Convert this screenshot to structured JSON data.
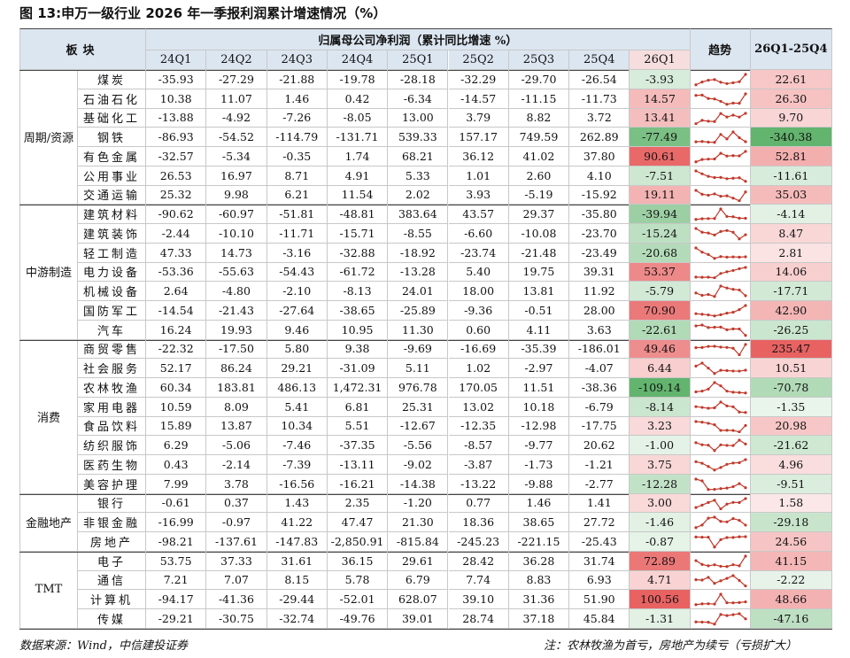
{
  "title": "图 13:申万一级行业 2026 年一季报利润累计增速情况（%）",
  "table": {
    "header": {
      "sector": "板块",
      "metric": "归属母公司净利润（累计同比增速 %）",
      "trend": "趋势",
      "diff": "26Q1-25Q4",
      "quarters": [
        "24Q1",
        "24Q2",
        "24Q3",
        "24Q4",
        "25Q1",
        "25Q2",
        "25Q3",
        "25Q4",
        "26Q1"
      ]
    },
    "groups": [
      {
        "name": "周期/资源",
        "rows": [
          {
            "name": "煤炭",
            "values": [
              "-35.93",
              "-27.29",
              "-21.88",
              "-19.78",
              "-28.18",
              "-32.29",
              "-29.70",
              "-26.54",
              "-3.93"
            ],
            "diff": "22.61"
          },
          {
            "name": "石油石化",
            "values": [
              "10.38",
              "11.07",
              "1.46",
              "0.42",
              "-6.34",
              "-14.57",
              "-11.15",
              "-11.73",
              "14.57"
            ],
            "diff": "26.30"
          },
          {
            "name": "基础化工",
            "values": [
              "-13.88",
              "-4.92",
              "-7.26",
              "-8.05",
              "13.00",
              "3.79",
              "8.82",
              "3.72",
              "13.41"
            ],
            "diff": "9.70"
          },
          {
            "name": "钢铁",
            "values": [
              "-86.93",
              "-54.52",
              "-114.79",
              "-131.71",
              "539.33",
              "157.17",
              "749.59",
              "262.89",
              "-77.49"
            ],
            "diff": "-340.38"
          },
          {
            "name": "有色金属",
            "values": [
              "-32.57",
              "-5.34",
              "-0.35",
              "1.74",
              "68.21",
              "36.12",
              "41.02",
              "37.80",
              "90.61"
            ],
            "diff": "52.81"
          },
          {
            "name": "公用事业",
            "values": [
              "26.53",
              "16.97",
              "8.71",
              "4.91",
              "5.33",
              "1.01",
              "2.60",
              "4.10",
              "-7.51"
            ],
            "diff": "-11.61"
          },
          {
            "name": "交通运输",
            "values": [
              "25.32",
              "9.98",
              "6.21",
              "11.54",
              "2.02",
              "3.93",
              "-5.19",
              "-15.92",
              "19.11"
            ],
            "diff": "35.03"
          }
        ]
      },
      {
        "name": "中游制造",
        "rows": [
          {
            "name": "建筑材料",
            "values": [
              "-90.62",
              "-60.97",
              "-51.81",
              "-48.81",
              "383.64",
              "43.57",
              "29.37",
              "-35.80",
              "-39.94"
            ],
            "diff": "-4.14"
          },
          {
            "name": "建筑装饰",
            "values": [
              "-2.44",
              "-10.10",
              "-11.71",
              "-15.71",
              "-8.55",
              "-6.60",
              "-10.08",
              "-23.70",
              "-15.24"
            ],
            "diff": "8.47"
          },
          {
            "name": "轻工制造",
            "values": [
              "47.33",
              "14.73",
              "-3.16",
              "-32.88",
              "-18.92",
              "-23.74",
              "-21.48",
              "-23.49",
              "-20.68"
            ],
            "diff": "2.81"
          },
          {
            "name": "电力设备",
            "values": [
              "-53.36",
              "-55.63",
              "-54.43",
              "-61.72",
              "-13.28",
              "5.40",
              "19.75",
              "39.31",
              "53.37"
            ],
            "diff": "14.06"
          },
          {
            "name": "机械设备",
            "values": [
              "2.64",
              "-4.80",
              "-2.10",
              "-8.13",
              "24.01",
              "18.00",
              "13.81",
              "11.92",
              "-5.79"
            ],
            "diff": "-17.71"
          },
          {
            "name": "国防军工",
            "values": [
              "-14.54",
              "-21.43",
              "-27.64",
              "-38.65",
              "-25.89",
              "-9.36",
              "-0.51",
              "28.00",
              "70.90"
            ],
            "diff": "42.90"
          },
          {
            "name": "汽车",
            "values": [
              "16.24",
              "19.93",
              "9.46",
              "10.95",
              "11.30",
              "0.60",
              "4.11",
              "3.63",
              "-22.61"
            ],
            "diff": "-26.25"
          }
        ]
      },
      {
        "name": "消费",
        "rows": [
          {
            "name": "商贸零售",
            "values": [
              "-22.32",
              "-17.50",
              "5.80",
              "9.38",
              "-9.69",
              "-16.69",
              "-35.39",
              "-186.01",
              "49.46"
            ],
            "diff": "235.47"
          },
          {
            "name": "社会服务",
            "values": [
              "52.17",
              "86.24",
              "29.21",
              "-31.09",
              "5.11",
              "1.02",
              "-2.97",
              "-4.07",
              "6.44"
            ],
            "diff": "10.51"
          },
          {
            "name": "农林牧渔",
            "values": [
              "60.34",
              "183.81",
              "486.13",
              "1,472.31",
              "976.78",
              "170.05",
              "11.51",
              "-38.36",
              "-109.14"
            ],
            "diff": "-70.78"
          },
          {
            "name": "家用电器",
            "values": [
              "10.59",
              "8.09",
              "5.41",
              "6.81",
              "25.31",
              "13.02",
              "10.18",
              "-6.79",
              "-8.14"
            ],
            "diff": "-1.35"
          },
          {
            "name": "食品饮料",
            "values": [
              "15.89",
              "13.87",
              "10.34",
              "5.51",
              "-12.67",
              "-12.35",
              "-12.98",
              "-17.75",
              "3.23"
            ],
            "diff": "20.98"
          },
          {
            "name": "纺织服饰",
            "values": [
              "6.29",
              "-5.06",
              "-7.46",
              "-37.35",
              "-5.56",
              "-8.57",
              "-9.77",
              "20.62",
              "-1.00"
            ],
            "diff": "-21.62"
          },
          {
            "name": "医药生物",
            "values": [
              "0.43",
              "-2.14",
              "-7.39",
              "-13.11",
              "-9.02",
              "-3.87",
              "-1.73",
              "-1.21",
              "3.75"
            ],
            "diff": "4.96"
          },
          {
            "name": "美容护理",
            "values": [
              "7.99",
              "3.78",
              "-16.56",
              "-16.21",
              "-14.38",
              "-13.22",
              "-9.88",
              "-2.77",
              "-12.28"
            ],
            "diff": "-9.51"
          }
        ]
      },
      {
        "name": "金融地产",
        "rows": [
          {
            "name": "银行",
            "values": [
              "-0.61",
              "0.37",
              "1.43",
              "2.35",
              "-1.20",
              "0.77",
              "1.46",
              "1.41",
              "3.00"
            ],
            "diff": "1.58"
          },
          {
            "name": "非银金融",
            "values": [
              "-16.99",
              "-0.97",
              "41.22",
              "47.47",
              "21.30",
              "18.36",
              "38.65",
              "27.72",
              "-1.46"
            ],
            "diff": "-29.18"
          },
          {
            "name": "房地产",
            "values": [
              "-98.21",
              "-137.61",
              "-147.83",
              "-2,850.91",
              "-815.84",
              "-245.23",
              "-221.15",
              "-25.43",
              "-0.87"
            ],
            "diff": "24.56"
          }
        ]
      },
      {
        "name": "TMT",
        "rows": [
          {
            "name": "电子",
            "values": [
              "53.75",
              "37.33",
              "31.61",
              "36.15",
              "29.61",
              "28.42",
              "36.28",
              "31.74",
              "72.89"
            ],
            "diff": "41.15"
          },
          {
            "name": "通信",
            "values": [
              "7.21",
              "7.07",
              "8.15",
              "5.78",
              "6.79",
              "7.74",
              "8.83",
              "6.93",
              "4.71"
            ],
            "diff": "-2.22"
          },
          {
            "name": "计算机",
            "values": [
              "-94.17",
              "-41.36",
              "-29.44",
              "-52.01",
              "628.07",
              "39.10",
              "31.36",
              "51.90",
              "100.56"
            ],
            "diff": "48.66"
          },
          {
            "name": "传媒",
            "values": [
              "-29.21",
              "-30.75",
              "-32.74",
              "-49.76",
              "39.01",
              "28.74",
              "37.18",
              "45.84",
              "-1.31"
            ],
            "diff": "-47.16"
          }
        ]
      }
    ]
  },
  "footer": {
    "source": "数据来源：Wind，中信建投证券",
    "note": "注：农林牧渔为首亏，房地产为续亏（亏损扩大）"
  }
}
